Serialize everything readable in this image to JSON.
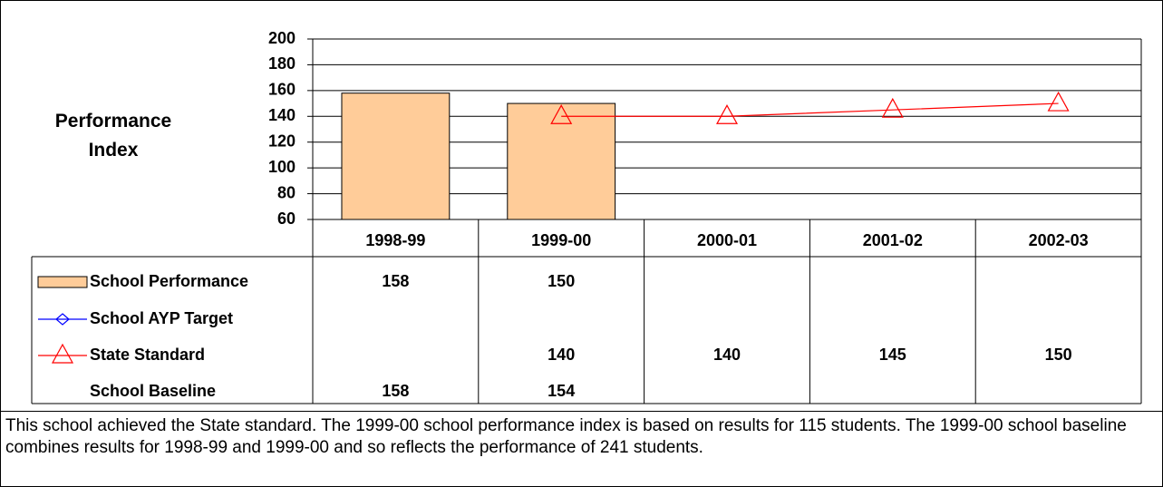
{
  "chart_data": {
    "type": "bar",
    "y_label": "Performance Index",
    "categories": [
      "1998-99",
      "1999-00",
      "2000-01",
      "2001-02",
      "2002-03"
    ],
    "series": [
      {
        "name": "School Performance",
        "type": "bar",
        "color": "#FFCC99",
        "values": [
          158,
          150,
          null,
          null,
          null
        ]
      },
      {
        "name": "School AYP Target",
        "type": "line",
        "marker": "diamond",
        "color": "#0000FF",
        "values": [
          null,
          null,
          null,
          null,
          null
        ]
      },
      {
        "name": "State Standard",
        "type": "line",
        "marker": "triangle",
        "color": "#FF0000",
        "values": [
          null,
          140,
          140,
          145,
          150
        ]
      },
      {
        "name": "School Baseline",
        "type": "table",
        "color": null,
        "values": [
          158,
          154,
          null,
          null,
          null
        ]
      }
    ],
    "ylim": [
      60,
      200
    ],
    "yticks": [
      60,
      80,
      100,
      120,
      140,
      160,
      180,
      200
    ],
    "grid": true,
    "note": "This school achieved the State standard. The 1999-00 school performance index is based on results for 115 students. The 1999-00 school baseline combines results for 1998-99 and 1999-00 and so reflects the performance of 241 students."
  }
}
